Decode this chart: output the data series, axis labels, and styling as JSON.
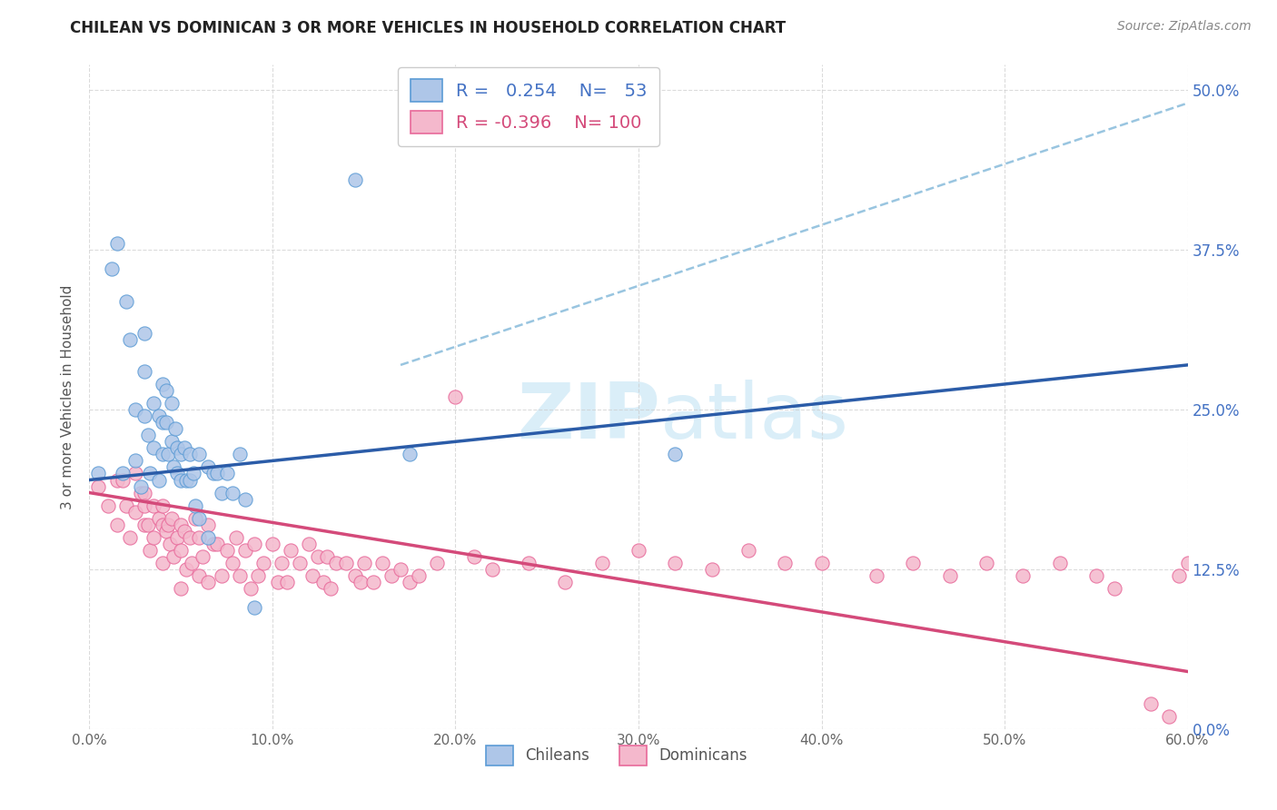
{
  "title": "CHILEAN VS DOMINICAN 3 OR MORE VEHICLES IN HOUSEHOLD CORRELATION CHART",
  "source": "Source: ZipAtlas.com",
  "ylabel": "3 or more Vehicles in Household",
  "xlabel_ticks": [
    "0.0%",
    "10.0%",
    "20.0%",
    "30.0%",
    "40.0%",
    "50.0%",
    "60.0%"
  ],
  "ylabel_ticks": [
    "0.0%",
    "12.5%",
    "25.0%",
    "37.5%",
    "50.0%"
  ],
  "xlim": [
    0.0,
    0.6
  ],
  "ylim": [
    0.0,
    0.52
  ],
  "chilean_R": 0.254,
  "chilean_N": 53,
  "dominican_R": -0.396,
  "dominican_N": 100,
  "chilean_color": "#aec6e8",
  "dominican_color": "#f4b8cc",
  "chilean_edge_color": "#5b9bd5",
  "dominican_edge_color": "#e8699a",
  "chilean_line_color": "#2b5ca8",
  "dominican_line_color": "#d44a7a",
  "dashed_line_color": "#99c5e0",
  "watermark_color": "#daeef8",
  "legend_chileans": "Chileans",
  "legend_dominicans": "Dominicans",
  "chilean_scatter_x": [
    0.005,
    0.012,
    0.015,
    0.018,
    0.02,
    0.022,
    0.025,
    0.025,
    0.028,
    0.03,
    0.03,
    0.03,
    0.032,
    0.033,
    0.035,
    0.035,
    0.038,
    0.038,
    0.04,
    0.04,
    0.04,
    0.042,
    0.042,
    0.043,
    0.045,
    0.045,
    0.046,
    0.047,
    0.048,
    0.048,
    0.05,
    0.05,
    0.052,
    0.053,
    0.055,
    0.055,
    0.057,
    0.058,
    0.06,
    0.06,
    0.065,
    0.065,
    0.068,
    0.07,
    0.072,
    0.075,
    0.078,
    0.082,
    0.085,
    0.09,
    0.145,
    0.175,
    0.32
  ],
  "chilean_scatter_y": [
    0.2,
    0.36,
    0.38,
    0.2,
    0.335,
    0.305,
    0.25,
    0.21,
    0.19,
    0.31,
    0.28,
    0.245,
    0.23,
    0.2,
    0.255,
    0.22,
    0.245,
    0.195,
    0.27,
    0.24,
    0.215,
    0.265,
    0.24,
    0.215,
    0.255,
    0.225,
    0.205,
    0.235,
    0.22,
    0.2,
    0.215,
    0.195,
    0.22,
    0.195,
    0.215,
    0.195,
    0.2,
    0.175,
    0.215,
    0.165,
    0.205,
    0.15,
    0.2,
    0.2,
    0.185,
    0.2,
    0.185,
    0.215,
    0.18,
    0.095,
    0.43,
    0.215,
    0.215
  ],
  "dominican_scatter_x": [
    0.005,
    0.01,
    0.015,
    0.015,
    0.018,
    0.02,
    0.022,
    0.025,
    0.025,
    0.028,
    0.03,
    0.03,
    0.03,
    0.032,
    0.033,
    0.035,
    0.035,
    0.038,
    0.04,
    0.04,
    0.04,
    0.042,
    0.043,
    0.044,
    0.045,
    0.046,
    0.048,
    0.05,
    0.05,
    0.05,
    0.052,
    0.053,
    0.055,
    0.056,
    0.058,
    0.06,
    0.06,
    0.062,
    0.065,
    0.065,
    0.068,
    0.07,
    0.072,
    0.075,
    0.078,
    0.08,
    0.082,
    0.085,
    0.088,
    0.09,
    0.092,
    0.095,
    0.1,
    0.103,
    0.105,
    0.108,
    0.11,
    0.115,
    0.12,
    0.122,
    0.125,
    0.128,
    0.13,
    0.132,
    0.135,
    0.14,
    0.145,
    0.148,
    0.15,
    0.155,
    0.16,
    0.165,
    0.17,
    0.175,
    0.18,
    0.19,
    0.2,
    0.21,
    0.22,
    0.24,
    0.26,
    0.28,
    0.3,
    0.32,
    0.34,
    0.36,
    0.38,
    0.4,
    0.43,
    0.45,
    0.47,
    0.49,
    0.51,
    0.53,
    0.55,
    0.56,
    0.58,
    0.59,
    0.595,
    0.6
  ],
  "dominican_scatter_y": [
    0.19,
    0.175,
    0.195,
    0.16,
    0.195,
    0.175,
    0.15,
    0.2,
    0.17,
    0.185,
    0.16,
    0.185,
    0.175,
    0.16,
    0.14,
    0.175,
    0.15,
    0.165,
    0.16,
    0.175,
    0.13,
    0.155,
    0.16,
    0.145,
    0.165,
    0.135,
    0.15,
    0.16,
    0.14,
    0.11,
    0.155,
    0.125,
    0.15,
    0.13,
    0.165,
    0.15,
    0.12,
    0.135,
    0.16,
    0.115,
    0.145,
    0.145,
    0.12,
    0.14,
    0.13,
    0.15,
    0.12,
    0.14,
    0.11,
    0.145,
    0.12,
    0.13,
    0.145,
    0.115,
    0.13,
    0.115,
    0.14,
    0.13,
    0.145,
    0.12,
    0.135,
    0.115,
    0.135,
    0.11,
    0.13,
    0.13,
    0.12,
    0.115,
    0.13,
    0.115,
    0.13,
    0.12,
    0.125,
    0.115,
    0.12,
    0.13,
    0.26,
    0.135,
    0.125,
    0.13,
    0.115,
    0.13,
    0.14,
    0.13,
    0.125,
    0.14,
    0.13,
    0.13,
    0.12,
    0.13,
    0.12,
    0.13,
    0.12,
    0.13,
    0.12,
    0.11,
    0.02,
    0.01,
    0.12,
    0.13
  ],
  "chilean_trend_x": [
    0.0,
    0.6
  ],
  "chilean_trend_y": [
    0.195,
    0.285
  ],
  "dominican_trend_x": [
    0.0,
    0.6
  ],
  "dominican_trend_y": [
    0.185,
    0.045
  ],
  "dashed_trend_x": [
    0.17,
    0.6
  ],
  "dashed_trend_y": [
    0.285,
    0.49
  ]
}
